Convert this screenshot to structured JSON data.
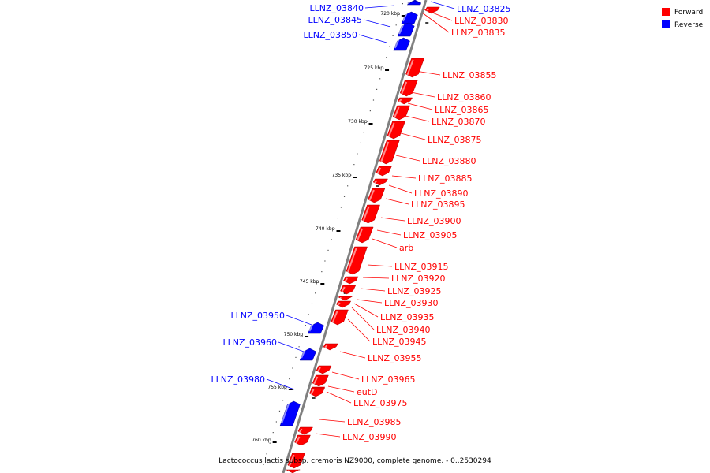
{
  "legend": {
    "items": [
      {
        "label": "Forward",
        "color": "#ff0000"
      },
      {
        "label": "Reverse",
        "color": "#0000ff"
      }
    ]
  },
  "colors": {
    "forward": "#ff0000",
    "reverse": "#0000ff",
    "backbone": "#808080"
  },
  "caption": "Lactococcus lactis subsp. cremoris NZ9000, complete genome. - 0..2530294",
  "ticks": [
    "720 kbp",
    "725 kbp",
    "730 kbp",
    "735 kbp",
    "740 kbp",
    "745 kbp",
    "750 kbp",
    "755 kbp",
    "760 kbp"
  ],
  "genes": [
    {
      "label": "LLNZ_03825",
      "strand": "reverse"
    },
    {
      "label": "LLNZ_03830",
      "strand": "forward"
    },
    {
      "label": "LLNZ_03835",
      "strand": "forward"
    },
    {
      "label": "LLNZ_03840",
      "strand": "reverse"
    },
    {
      "label": "LLNZ_03845",
      "strand": "reverse"
    },
    {
      "label": "LLNZ_03850",
      "strand": "reverse"
    },
    {
      "label": "LLNZ_03855",
      "strand": "forward"
    },
    {
      "label": "LLNZ_03860",
      "strand": "forward"
    },
    {
      "label": "LLNZ_03865",
      "strand": "forward"
    },
    {
      "label": "LLNZ_03870",
      "strand": "forward"
    },
    {
      "label": "LLNZ_03875",
      "strand": "forward"
    },
    {
      "label": "LLNZ_03880",
      "strand": "forward"
    },
    {
      "label": "LLNZ_03885",
      "strand": "forward"
    },
    {
      "label": "LLNZ_03890",
      "strand": "forward"
    },
    {
      "label": "LLNZ_03895",
      "strand": "forward"
    },
    {
      "label": "LLNZ_03900",
      "strand": "forward"
    },
    {
      "label": "LLNZ_03905",
      "strand": "forward"
    },
    {
      "label": "arb",
      "strand": "forward"
    },
    {
      "label": "LLNZ_03915",
      "strand": "forward"
    },
    {
      "label": "LLNZ_03920",
      "strand": "forward"
    },
    {
      "label": "LLNZ_03925",
      "strand": "forward"
    },
    {
      "label": "LLNZ_03930",
      "strand": "forward"
    },
    {
      "label": "LLNZ_03935",
      "strand": "forward"
    },
    {
      "label": "LLNZ_03940",
      "strand": "forward"
    },
    {
      "label": "LLNZ_03945",
      "strand": "forward"
    },
    {
      "label": "LLNZ_03950",
      "strand": "reverse"
    },
    {
      "label": "LLNZ_03955",
      "strand": "forward"
    },
    {
      "label": "LLNZ_03960",
      "strand": "reverse"
    },
    {
      "label": "LLNZ_03965",
      "strand": "forward"
    },
    {
      "label": "eutD",
      "strand": "forward"
    },
    {
      "label": "LLNZ_03975",
      "strand": "forward"
    },
    {
      "label": "LLNZ_03980",
      "strand": "reverse"
    },
    {
      "label": "LLNZ_03985",
      "strand": "forward"
    },
    {
      "label": "LLNZ_03990",
      "strand": "forward"
    }
  ]
}
